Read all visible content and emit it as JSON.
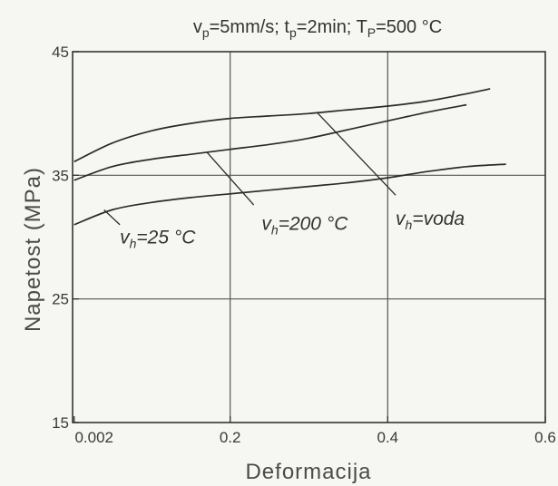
{
  "chart_data": {
    "type": "line",
    "title_parts": {
      "vp": "v",
      "vp_sub": "p",
      "vp_val": "=5mm/s; ",
      "tp": "t",
      "tp_sub": "p",
      "tp_val": "=2min; ",
      "Tp": "T",
      "Tp_sub": "P",
      "Tp_val": "=500 °C"
    },
    "xlabel": "Deformacija",
    "ylabel": "Napetost (MPa)",
    "xlim": [
      0,
      0.6
    ],
    "ylim": [
      15,
      45
    ],
    "x_ticks": [
      {
        "value": 0.002,
        "label": "0.002"
      },
      {
        "value": 0.2,
        "label": "0.2"
      },
      {
        "value": 0.4,
        "label": "0.4"
      },
      {
        "value": 0.6,
        "label": "0.6"
      }
    ],
    "y_ticks": [
      {
        "value": 15,
        "label": "15"
      },
      {
        "value": 25,
        "label": "25"
      },
      {
        "value": 35,
        "label": "35"
      },
      {
        "value": 45,
        "label": "45"
      }
    ],
    "grid": true,
    "series": [
      {
        "x": [
          0.002,
          0.05,
          0.1,
          0.15,
          0.2,
          0.25,
          0.3,
          0.35,
          0.4,
          0.45,
          0.5,
          0.53
        ],
        "y": [
          36.1,
          37.6,
          38.6,
          39.2,
          39.6,
          39.8,
          40.0,
          40.3,
          40.6,
          41.0,
          41.6,
          42.0
        ]
      },
      {
        "x": [
          0.002,
          0.05,
          0.1,
          0.15,
          0.2,
          0.25,
          0.3,
          0.35,
          0.4,
          0.45,
          0.5
        ],
        "y": [
          34.6,
          35.7,
          36.3,
          36.7,
          37.1,
          37.5,
          38.0,
          38.7,
          39.4,
          40.1,
          40.7
        ]
      },
      {
        "x": [
          0.002,
          0.05,
          0.1,
          0.15,
          0.2,
          0.25,
          0.3,
          0.35,
          0.4,
          0.45,
          0.5,
          0.55
        ],
        "y": [
          31.0,
          32.2,
          32.8,
          33.2,
          33.5,
          33.8,
          34.1,
          34.4,
          34.8,
          35.3,
          35.7,
          35.9
        ]
      }
    ],
    "annotations": [
      {
        "v": "v",
        "sub": "h",
        "text": "=25 °C",
        "x": 0.06,
        "y": 29.5,
        "arrow_from": [
          0.06,
          31.0
        ],
        "arrow_to": [
          0.04,
          32.2
        ]
      },
      {
        "v": "v",
        "sub": "h",
        "text": "=200 °C",
        "x": 0.24,
        "y": 30.6,
        "arrow_from": [
          0.23,
          32.6
        ],
        "arrow_to": [
          0.17,
          36.9
        ]
      },
      {
        "v": "v",
        "sub": "h",
        "text": "=voda",
        "x": 0.41,
        "y": 31.0,
        "arrow_from": [
          0.41,
          33.4
        ],
        "arrow_to": [
          0.31,
          40.1
        ]
      }
    ]
  }
}
